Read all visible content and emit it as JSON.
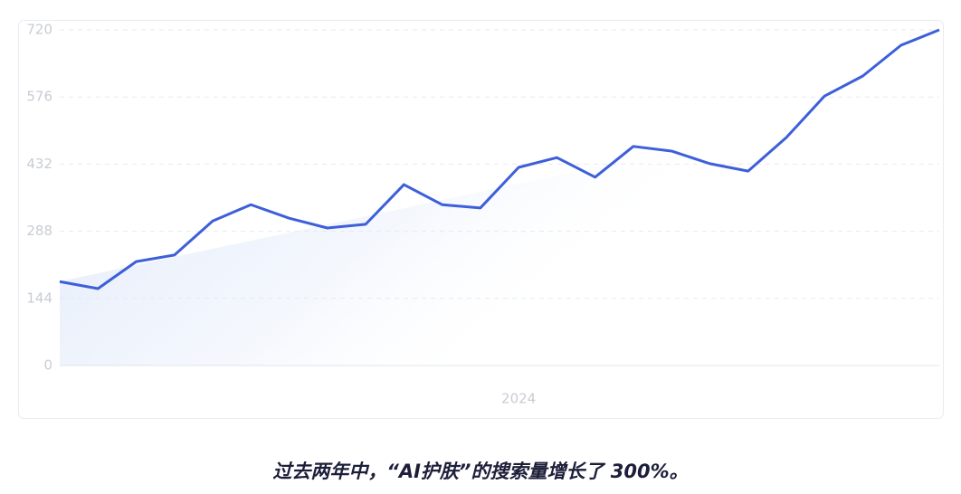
{
  "chart_data": {
    "type": "line",
    "categories": [
      null,
      null,
      null,
      null,
      null,
      null,
      null,
      null,
      null,
      null,
      null,
      null,
      "2024",
      null,
      null,
      null,
      null,
      null,
      null,
      null,
      null,
      null,
      null,
      null
    ],
    "series": [
      {
        "color": "#3d5fd9",
        "values": [
          180,
          165,
          223,
          237,
          310,
          345,
          316,
          295,
          303,
          388,
          345,
          338,
          425,
          446,
          404,
          470,
          460,
          433,
          417,
          489,
          578,
          621,
          687,
          720
        ]
      }
    ],
    "ylim": [
      0,
      720
    ],
    "yticks": [
      0,
      144,
      288,
      432,
      576,
      720
    ],
    "grid": true,
    "caption": "过去两年中，“AI护肤”的搜索量增长了 300%。"
  }
}
